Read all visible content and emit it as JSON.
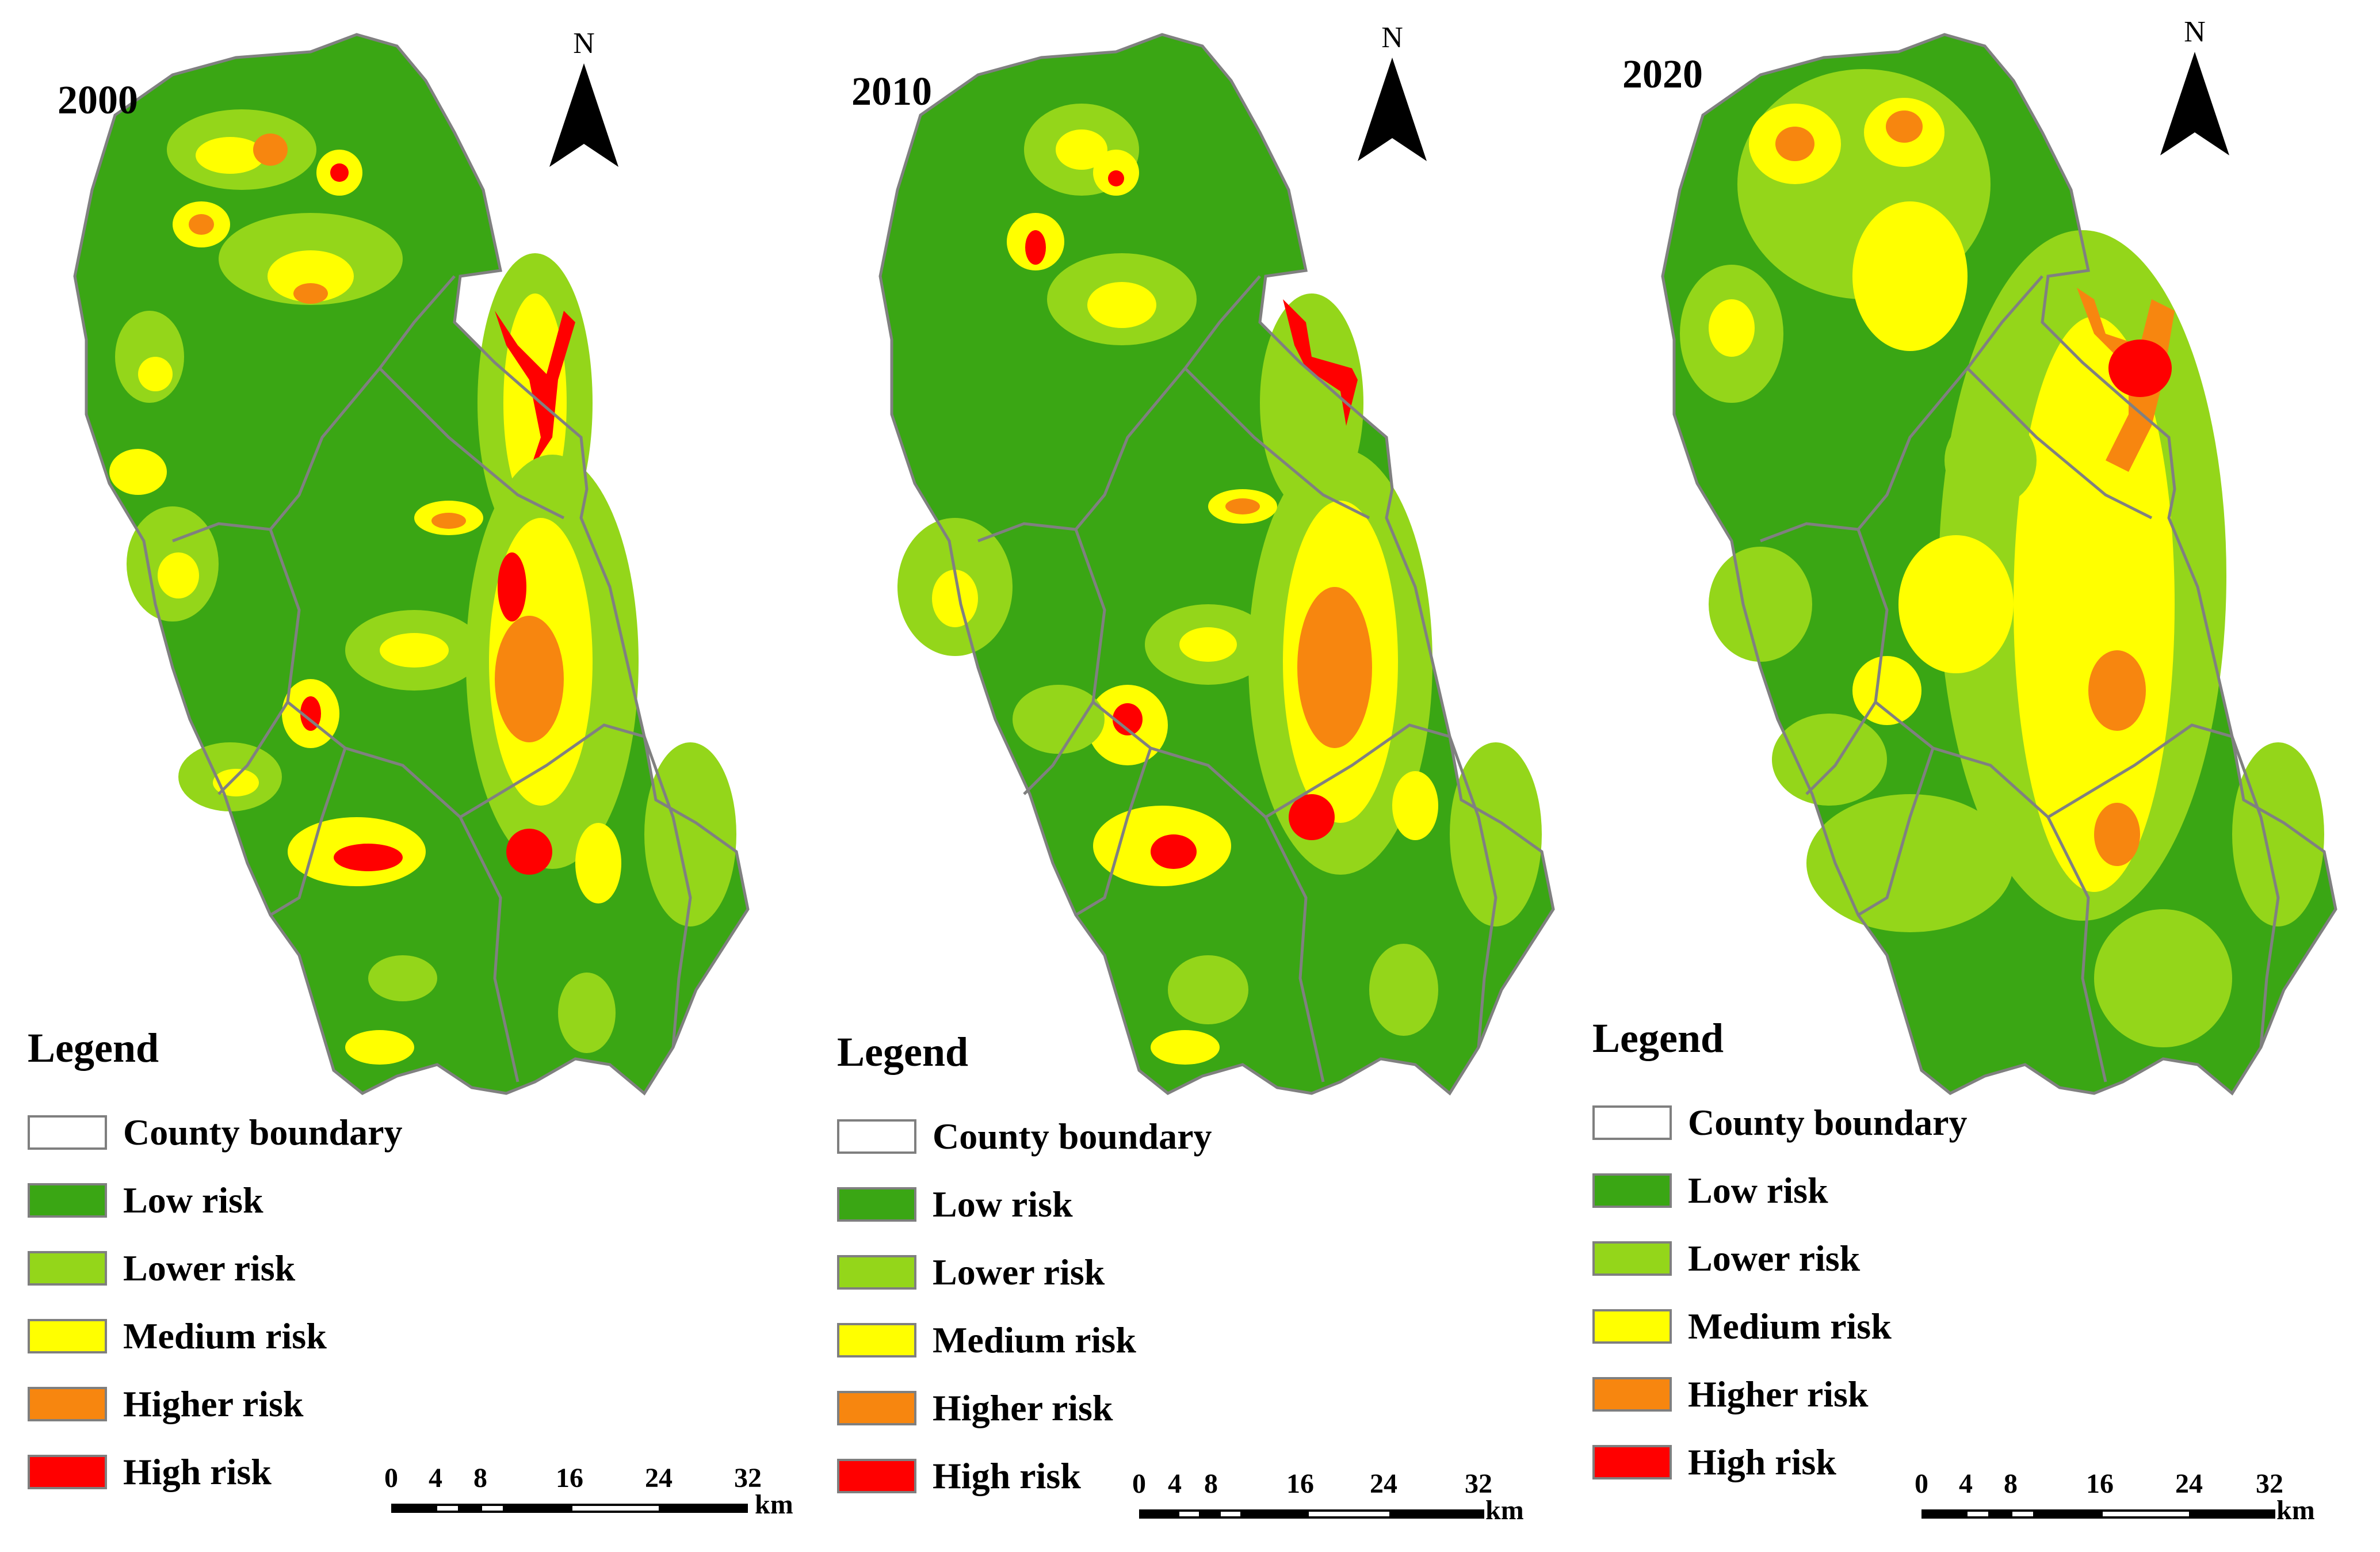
{
  "panels": [
    {
      "year": "2000",
      "north": "N"
    },
    {
      "year": "2010",
      "north": "N"
    },
    {
      "year": "2020",
      "north": "N"
    }
  ],
  "legend": {
    "title": "Legend",
    "items": [
      {
        "label": "County boundary",
        "color": "#ffffff"
      },
      {
        "label": "Low risk",
        "color": "#3aa614"
      },
      {
        "label": "Lower risk",
        "color": "#94d61a"
      },
      {
        "label": "Medium risk",
        "color": "#ffff00"
      },
      {
        "label": "Higher risk",
        "color": "#f7860f"
      },
      {
        "label": "High risk",
        "color": "#ff0000"
      }
    ]
  },
  "scale": {
    "ticks": [
      "0",
      "4",
      "8",
      "16",
      "24",
      "32"
    ],
    "unit": "km"
  },
  "colors": {
    "low": "#3aa614",
    "lower": "#94d61a",
    "medium": "#ffff00",
    "higher": "#f7860f",
    "high": "#ff0000",
    "boundary": "#808080"
  }
}
